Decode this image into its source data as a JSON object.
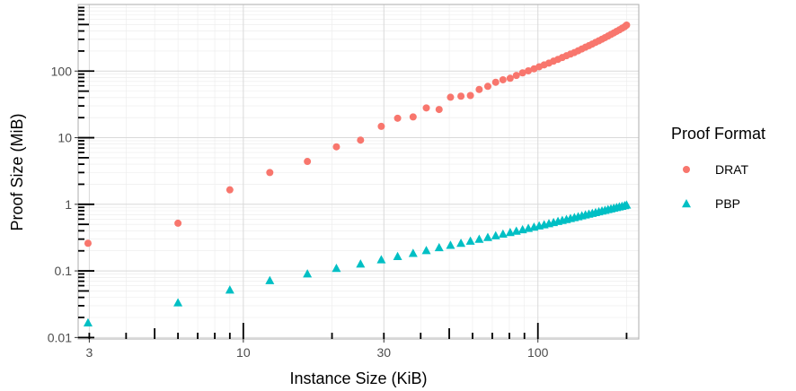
{
  "chart_data": {
    "type": "scatter",
    "xlabel": "Instance Size (KiB)",
    "ylabel": "Proof Size (MiB)",
    "x_scale": "log",
    "y_scale": "log",
    "xlim": [
      2.75,
      220
    ],
    "ylim": [
      0.0095,
      1000
    ],
    "x_ticks": [
      3,
      10,
      30,
      100
    ],
    "x_tick_labels": [
      "3",
      "10",
      "30",
      "100"
    ],
    "y_ticks": [
      0.01,
      0.1,
      1,
      10,
      100
    ],
    "y_tick_labels": [
      "0.01",
      "0.1",
      "1",
      "10",
      "100"
    ],
    "grid": true,
    "legend": {
      "title": "Proof Format",
      "position": "right",
      "entries": [
        "DRAT",
        "PBP"
      ]
    },
    "series": [
      {
        "name": "DRAT",
        "color": "#F8766D",
        "shape": "circle",
        "points": [
          [
            2.97,
            0.26
          ],
          [
            6.0,
            0.52
          ],
          [
            9.0,
            1.65
          ],
          [
            12.3,
            3.0
          ],
          [
            16.5,
            4.4
          ],
          [
            20.7,
            7.3
          ],
          [
            25.0,
            9.2
          ],
          [
            29.4,
            14.8
          ],
          [
            33.4,
            19.6
          ],
          [
            37.7,
            20.5
          ],
          [
            41.8,
            28.0
          ],
          [
            46.2,
            26.5
          ],
          [
            50.5,
            40.5
          ],
          [
            54.8,
            42.0
          ],
          [
            59.0,
            43.0
          ],
          [
            63.2,
            53.0
          ],
          [
            67.6,
            59.0
          ],
          [
            71.9,
            68.0
          ],
          [
            76.1,
            74.0
          ],
          [
            80.5,
            78.0
          ],
          [
            84.5,
            86.0
          ],
          [
            88.7,
            94.0
          ],
          [
            92.8,
            101.0
          ],
          [
            97.0,
            108.0
          ],
          [
            101.0,
            116.0
          ],
          [
            105.0,
            124.0
          ],
          [
            109.0,
            132.0
          ],
          [
            113.0,
            141.0
          ],
          [
            117.0,
            150.0
          ],
          [
            121.0,
            160.0
          ],
          [
            125.0,
            170.0
          ],
          [
            129.0,
            180.0
          ],
          [
            133.0,
            190.0
          ],
          [
            137.0,
            202.0
          ],
          [
            141.0,
            215.0
          ],
          [
            145.0,
            228.0
          ],
          [
            149.0,
            241.0
          ],
          [
            153.0,
            255.0
          ],
          [
            157.0,
            270.0
          ],
          [
            161.0,
            285.0
          ],
          [
            165.0,
            301.0
          ],
          [
            169.0,
            318.0
          ],
          [
            173.0,
            336.0
          ],
          [
            177.0,
            355.0
          ],
          [
            181.0,
            374.0
          ],
          [
            185.0,
            395.0
          ],
          [
            189.0,
            416.0
          ],
          [
            193.0,
            439.0
          ],
          [
            197.0,
            463.0
          ],
          [
            200.0,
            490.0
          ]
        ]
      },
      {
        "name": "PBP",
        "color": "#00BFC4",
        "shape": "triangle",
        "points": [
          [
            2.97,
            0.0167
          ],
          [
            6.0,
            0.0335
          ],
          [
            9.0,
            0.052
          ],
          [
            12.3,
            0.072
          ],
          [
            16.5,
            0.091
          ],
          [
            20.7,
            0.11
          ],
          [
            25.0,
            0.128
          ],
          [
            29.4,
            0.148
          ],
          [
            33.4,
            0.166
          ],
          [
            37.7,
            0.185
          ],
          [
            41.8,
            0.204
          ],
          [
            46.2,
            0.225
          ],
          [
            50.5,
            0.244
          ],
          [
            54.8,
            0.262
          ],
          [
            59.0,
            0.282
          ],
          [
            63.2,
            0.301
          ],
          [
            67.6,
            0.32
          ],
          [
            71.9,
            0.34
          ],
          [
            76.1,
            0.36
          ],
          [
            80.5,
            0.38
          ],
          [
            84.5,
            0.399
          ],
          [
            88.7,
            0.419
          ],
          [
            92.8,
            0.438
          ],
          [
            97.0,
            0.458
          ],
          [
            101.0,
            0.477
          ],
          [
            105.0,
            0.497
          ],
          [
            109.0,
            0.517
          ],
          [
            113.0,
            0.537
          ],
          [
            117.0,
            0.557
          ],
          [
            121.0,
            0.577
          ],
          [
            125.0,
            0.597
          ],
          [
            129.0,
            0.617
          ],
          [
            133.0,
            0.637
          ],
          [
            137.0,
            0.657
          ],
          [
            141.0,
            0.678
          ],
          [
            145.0,
            0.698
          ],
          [
            149.0,
            0.718
          ],
          [
            153.0,
            0.738
          ],
          [
            157.0,
            0.758
          ],
          [
            161.0,
            0.779
          ],
          [
            165.0,
            0.799
          ],
          [
            169.0,
            0.82
          ],
          [
            173.0,
            0.84
          ],
          [
            177.0,
            0.861
          ],
          [
            181.0,
            0.881
          ],
          [
            185.0,
            0.902
          ],
          [
            189.0,
            0.922
          ],
          [
            193.0,
            0.943
          ],
          [
            197.0,
            0.963
          ],
          [
            200.0,
            0.984
          ]
        ]
      }
    ]
  }
}
